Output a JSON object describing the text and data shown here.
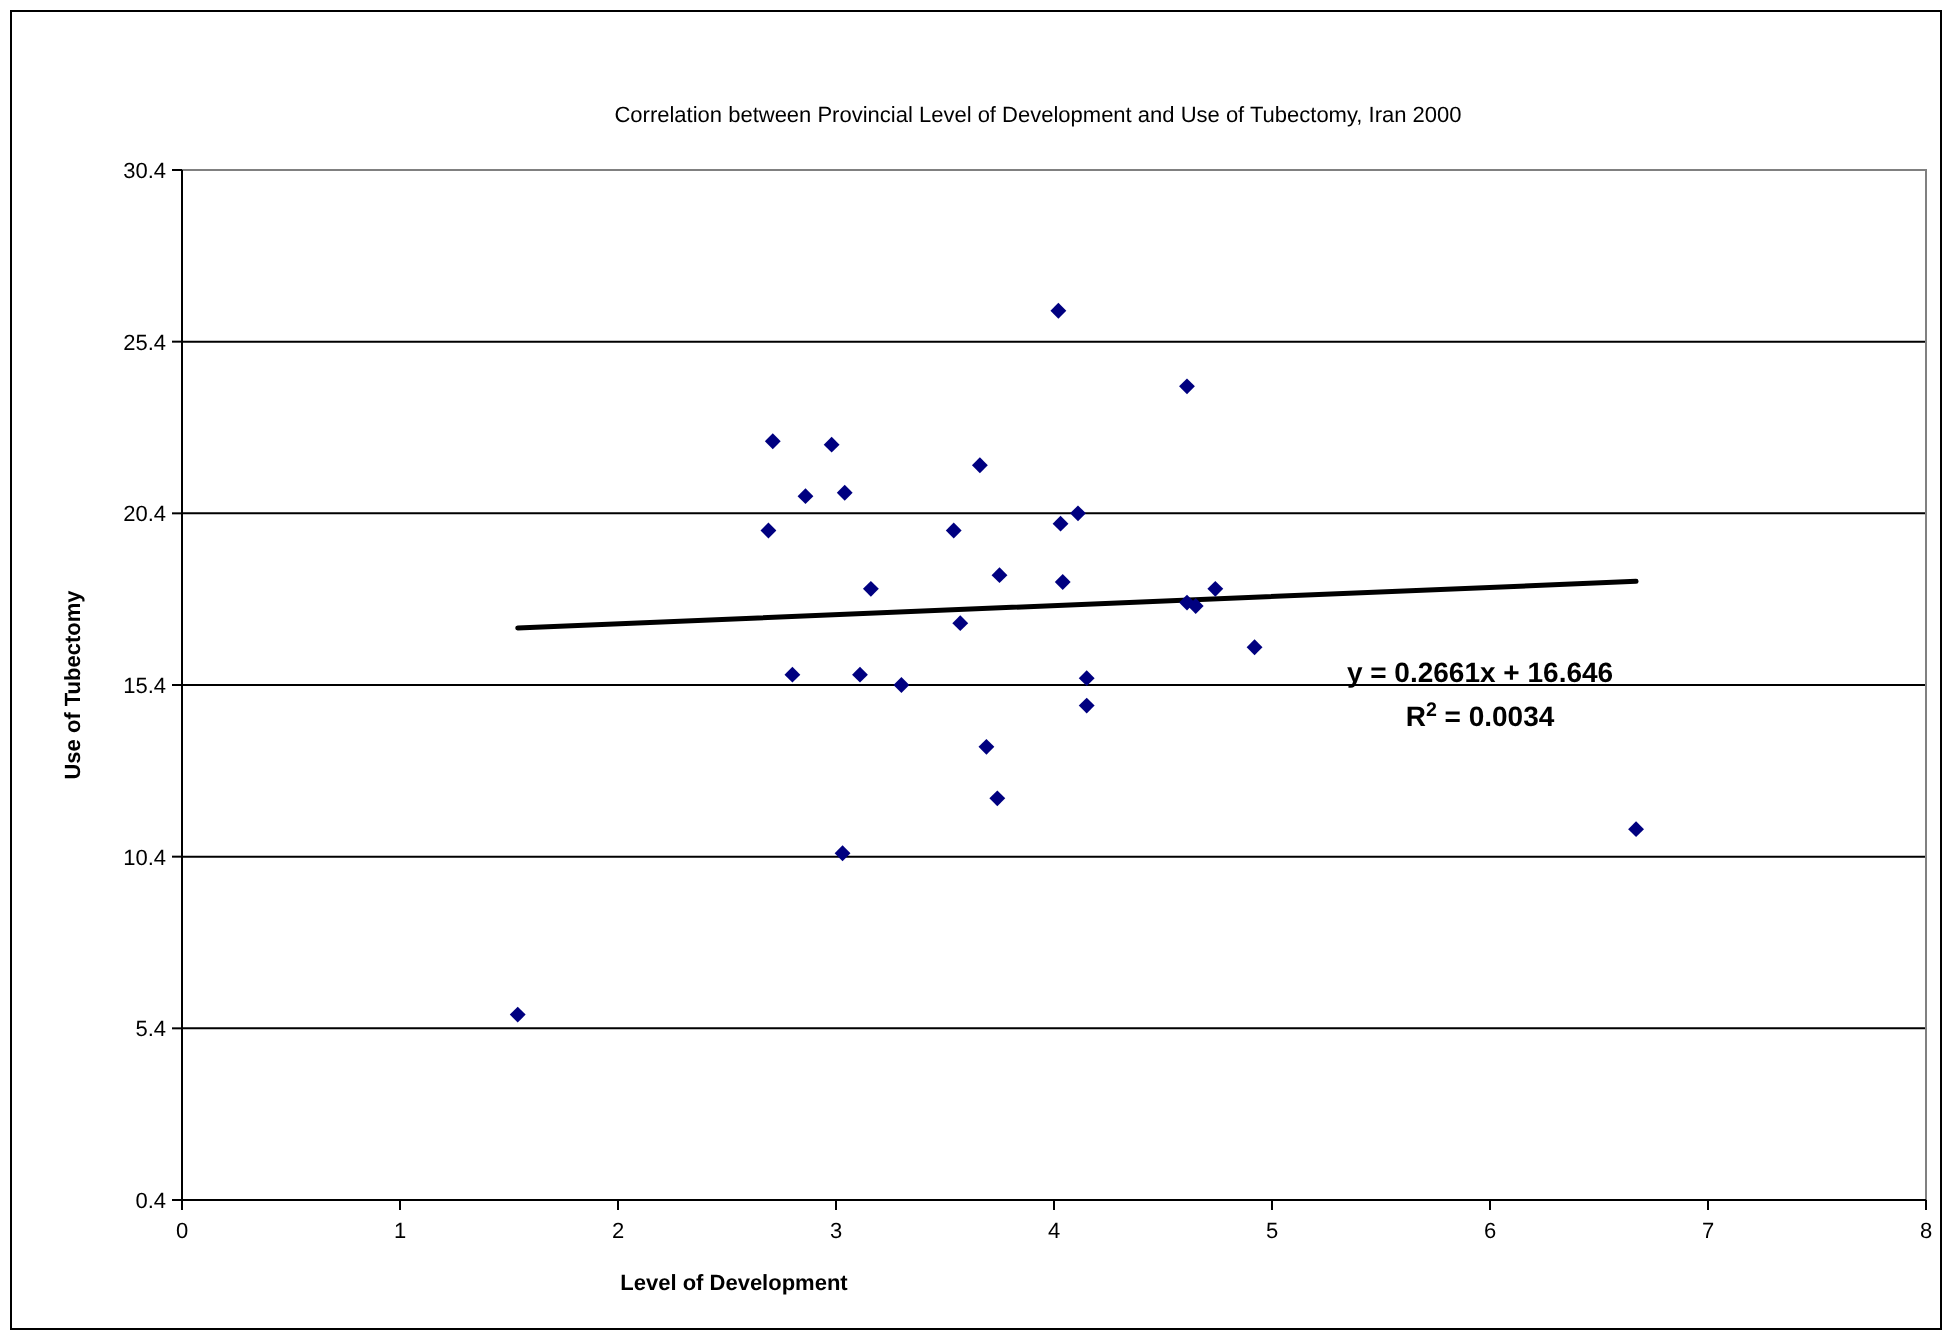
{
  "chart_data": {
    "type": "scatter",
    "title": "Correlation between Provincial Level of Development and Use of Tubectomy, Iran 2000",
    "xlabel": "Level of Development",
    "ylabel": "Use of Tubectomy",
    "xlim": [
      0,
      8
    ],
    "xticks": [
      0,
      1,
      2,
      3,
      4,
      5,
      6,
      7,
      8
    ],
    "ylim": [
      0.4,
      30.4
    ],
    "yticks": [
      0.4,
      5.4,
      10.4,
      15.4,
      20.4,
      25.4,
      30.4
    ],
    "grid": "y",
    "marker": "diamond",
    "series": [
      {
        "color": "#000080",
        "x": [
          2.71,
          2.98,
          2.86,
          3.04,
          3.66,
          2.69,
          3.54,
          4.03,
          4.11,
          4.02,
          4.61,
          3.16,
          3.75,
          4.04,
          4.74,
          4.61,
          4.65,
          3.57,
          4.92,
          2.8,
          3.11,
          3.3,
          4.15,
          4.15,
          3.69,
          3.74,
          3.03,
          6.67,
          1.54
        ],
        "values": [
          22.5,
          22.4,
          20.9,
          21.0,
          21.8,
          19.9,
          19.9,
          20.1,
          20.4,
          26.3,
          24.1,
          18.2,
          18.6,
          18.4,
          18.2,
          17.8,
          17.7,
          17.2,
          16.5,
          15.7,
          15.7,
          15.4,
          15.6,
          14.8,
          13.6,
          12.1,
          10.5,
          11.2,
          5.8
        ]
      },
      {
        "type": "line",
        "color": "#000000",
        "x": [
          1.54,
          6.67
        ],
        "values": [
          17.06,
          18.42
        ],
        "marker": "none",
        "line_style": "solid"
      }
    ],
    "annotations": [
      "y = 0.2661x + 16.646",
      "R$^{2}$ = 0.0034"
    ]
  }
}
